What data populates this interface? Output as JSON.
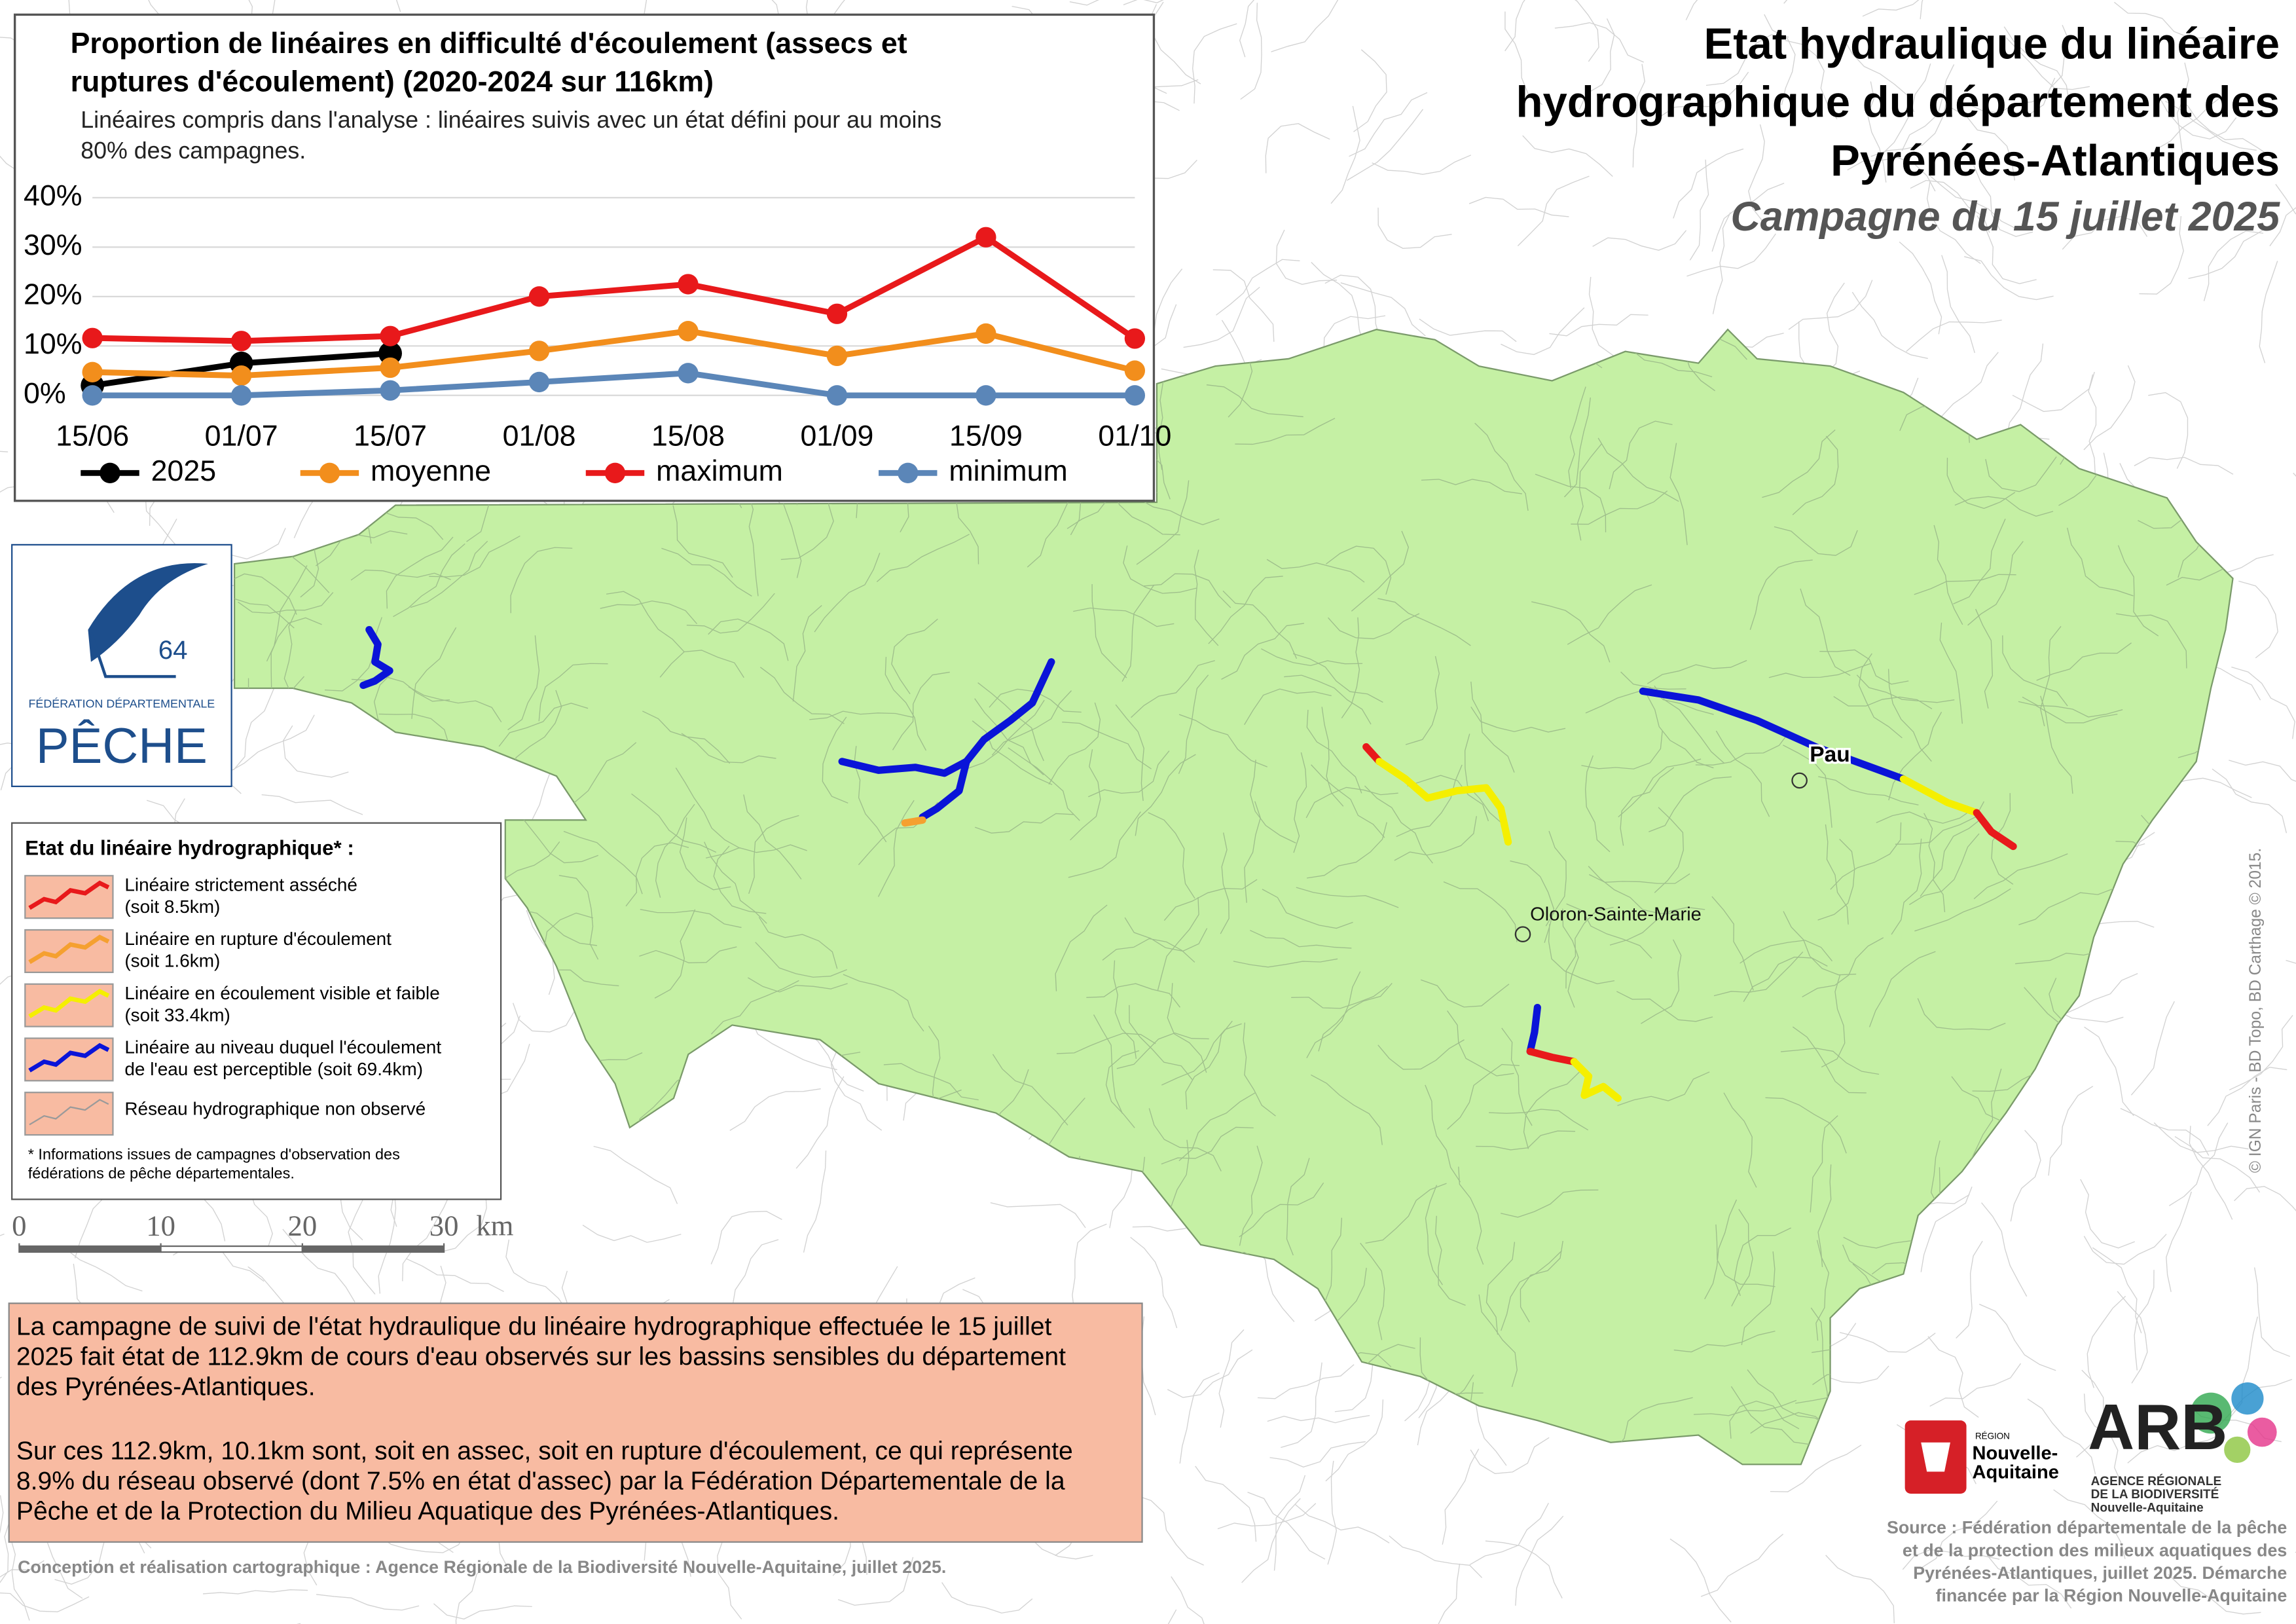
{
  "header": {
    "title_lines": [
      "Etat hydraulique du linéaire",
      "hydrographique du département des",
      "Pyrénées-Atlantiques"
    ],
    "subtitle": "Campagne du 15 juillet 2025"
  },
  "chart_data": {
    "type": "line",
    "title_lines": [
      "Proportion de linéaires en difficulté d'écoulement (assecs et",
      "ruptures d'écoulement) (2020-2024 sur 116km)"
    ],
    "subtitle_lines": [
      "Linéaires compris dans l'analyse : linéaires suivis avec un état défini pour au moins",
      "80% des campagnes."
    ],
    "categories": [
      "15/06",
      "01/07",
      "15/07",
      "01/08",
      "15/08",
      "01/09",
      "15/09",
      "01/10"
    ],
    "series": [
      {
        "name": "2025",
        "color": "#000000",
        "values": [
          2,
          6.5,
          8.5,
          null,
          null,
          null,
          null,
          null
        ]
      },
      {
        "name": "moyenne",
        "color": "#f28e1c",
        "values": [
          4.7,
          4,
          5.6,
          9,
          13,
          8,
          12.5,
          5
        ]
      },
      {
        "name": "maximum",
        "color": "#e8191b",
        "values": [
          11.6,
          11,
          12,
          20,
          22.5,
          16.5,
          32,
          11.5
        ]
      },
      {
        "name": "minimum",
        "color": "#5b86b8",
        "values": [
          0,
          0,
          1,
          2.7,
          4.5,
          0,
          0,
          0
        ]
      }
    ],
    "ylim": [
      0,
      40
    ],
    "yticks": [
      {
        "value": 0,
        "label": "0%"
      },
      {
        "value": 10,
        "label": "10%"
      },
      {
        "value": 20,
        "label": "20%"
      },
      {
        "value": 30,
        "label": "30%"
      },
      {
        "value": 40,
        "label": "40%"
      }
    ],
    "grid": true,
    "legend": "bottom"
  },
  "logo_peche": {
    "number": "64",
    "org": "FÉDÉRATION DÉPARTEMENTALE",
    "name": "PÊCHE"
  },
  "legend": {
    "title": "Etat du linéaire hydrographique* :",
    "items": [
      {
        "label_lines": [
          "Linéaire strictement asséché",
          "(soit 8.5km)"
        ],
        "color": "#e8191b"
      },
      {
        "label_lines": [
          "Linéaire en rupture d'écoulement",
          "(soit 1.6km)"
        ],
        "color": "#f5a030"
      },
      {
        "label_lines": [
          "Linéaire en écoulement visible et faible",
          "(soit 33.4km)"
        ],
        "color": "#f5ef00"
      },
      {
        "label_lines": [
          "Linéaire au niveau duquel l'écoulement",
          "de l'eau est perceptible (soit 69.4km)"
        ],
        "color": "#0a14d8"
      },
      {
        "label_lines": [
          "Réseau hydrographique non observé"
        ],
        "color": "#9a9a9a"
      }
    ],
    "footnote_lines": [
      "* Informations issues de campagnes d'observation des",
      "fédérations de pêche départementales."
    ]
  },
  "scale_bar": {
    "ticks": [
      0,
      10,
      20,
      30
    ],
    "unit": "km"
  },
  "places": [
    {
      "name": "Pau"
    },
    {
      "name": "Oloron-Sainte-Marie"
    }
  ],
  "summary": {
    "paragraphs": [
      [
        "La campagne de suivi de l'état hydraulique du linéaire hydrographique effectuée le 15 juillet",
        "2025 fait état de 112.9km de cours d'eau observés sur les bassins sensibles du département",
        "des Pyrénées-Atlantiques."
      ],
      [
        "Sur ces 112.9km, 10.1km sont, soit en assec, soit en rupture d'écoulement, ce qui représente",
        "8.9% du réseau observé (dont 7.5% en état d'assec) par la Fédération Départementale de la",
        "Pêche et de la Protection du Milieu Aquatique des Pyrénées-Atlantiques."
      ]
    ]
  },
  "credits": {
    "conception": "Conception et réalisation cartographique : Agence Régionale de la Biodiversité Nouvelle-Aquitaine, juillet 2025.",
    "copyright": "© IGN Paris - BD Topo, BD Carthage © 2015.",
    "source_lines": [
      "Source : Fédération départementale de la pêche",
      "et de la protection des milieux aquatiques des",
      "Pyrénées-Atlantiques, juillet 2025. Démarche",
      "financée par la Région Nouvelle-Aquitaine"
    ]
  },
  "logos": {
    "region_lines": [
      "RÉGION",
      "Nouvelle-",
      "Aquitaine"
    ],
    "arb": "ARB",
    "arb_lines": [
      "AGENCE RÉGIONALE",
      "DE LA BIODIVERSITÉ",
      "Nouvelle-Aquitaine"
    ]
  }
}
